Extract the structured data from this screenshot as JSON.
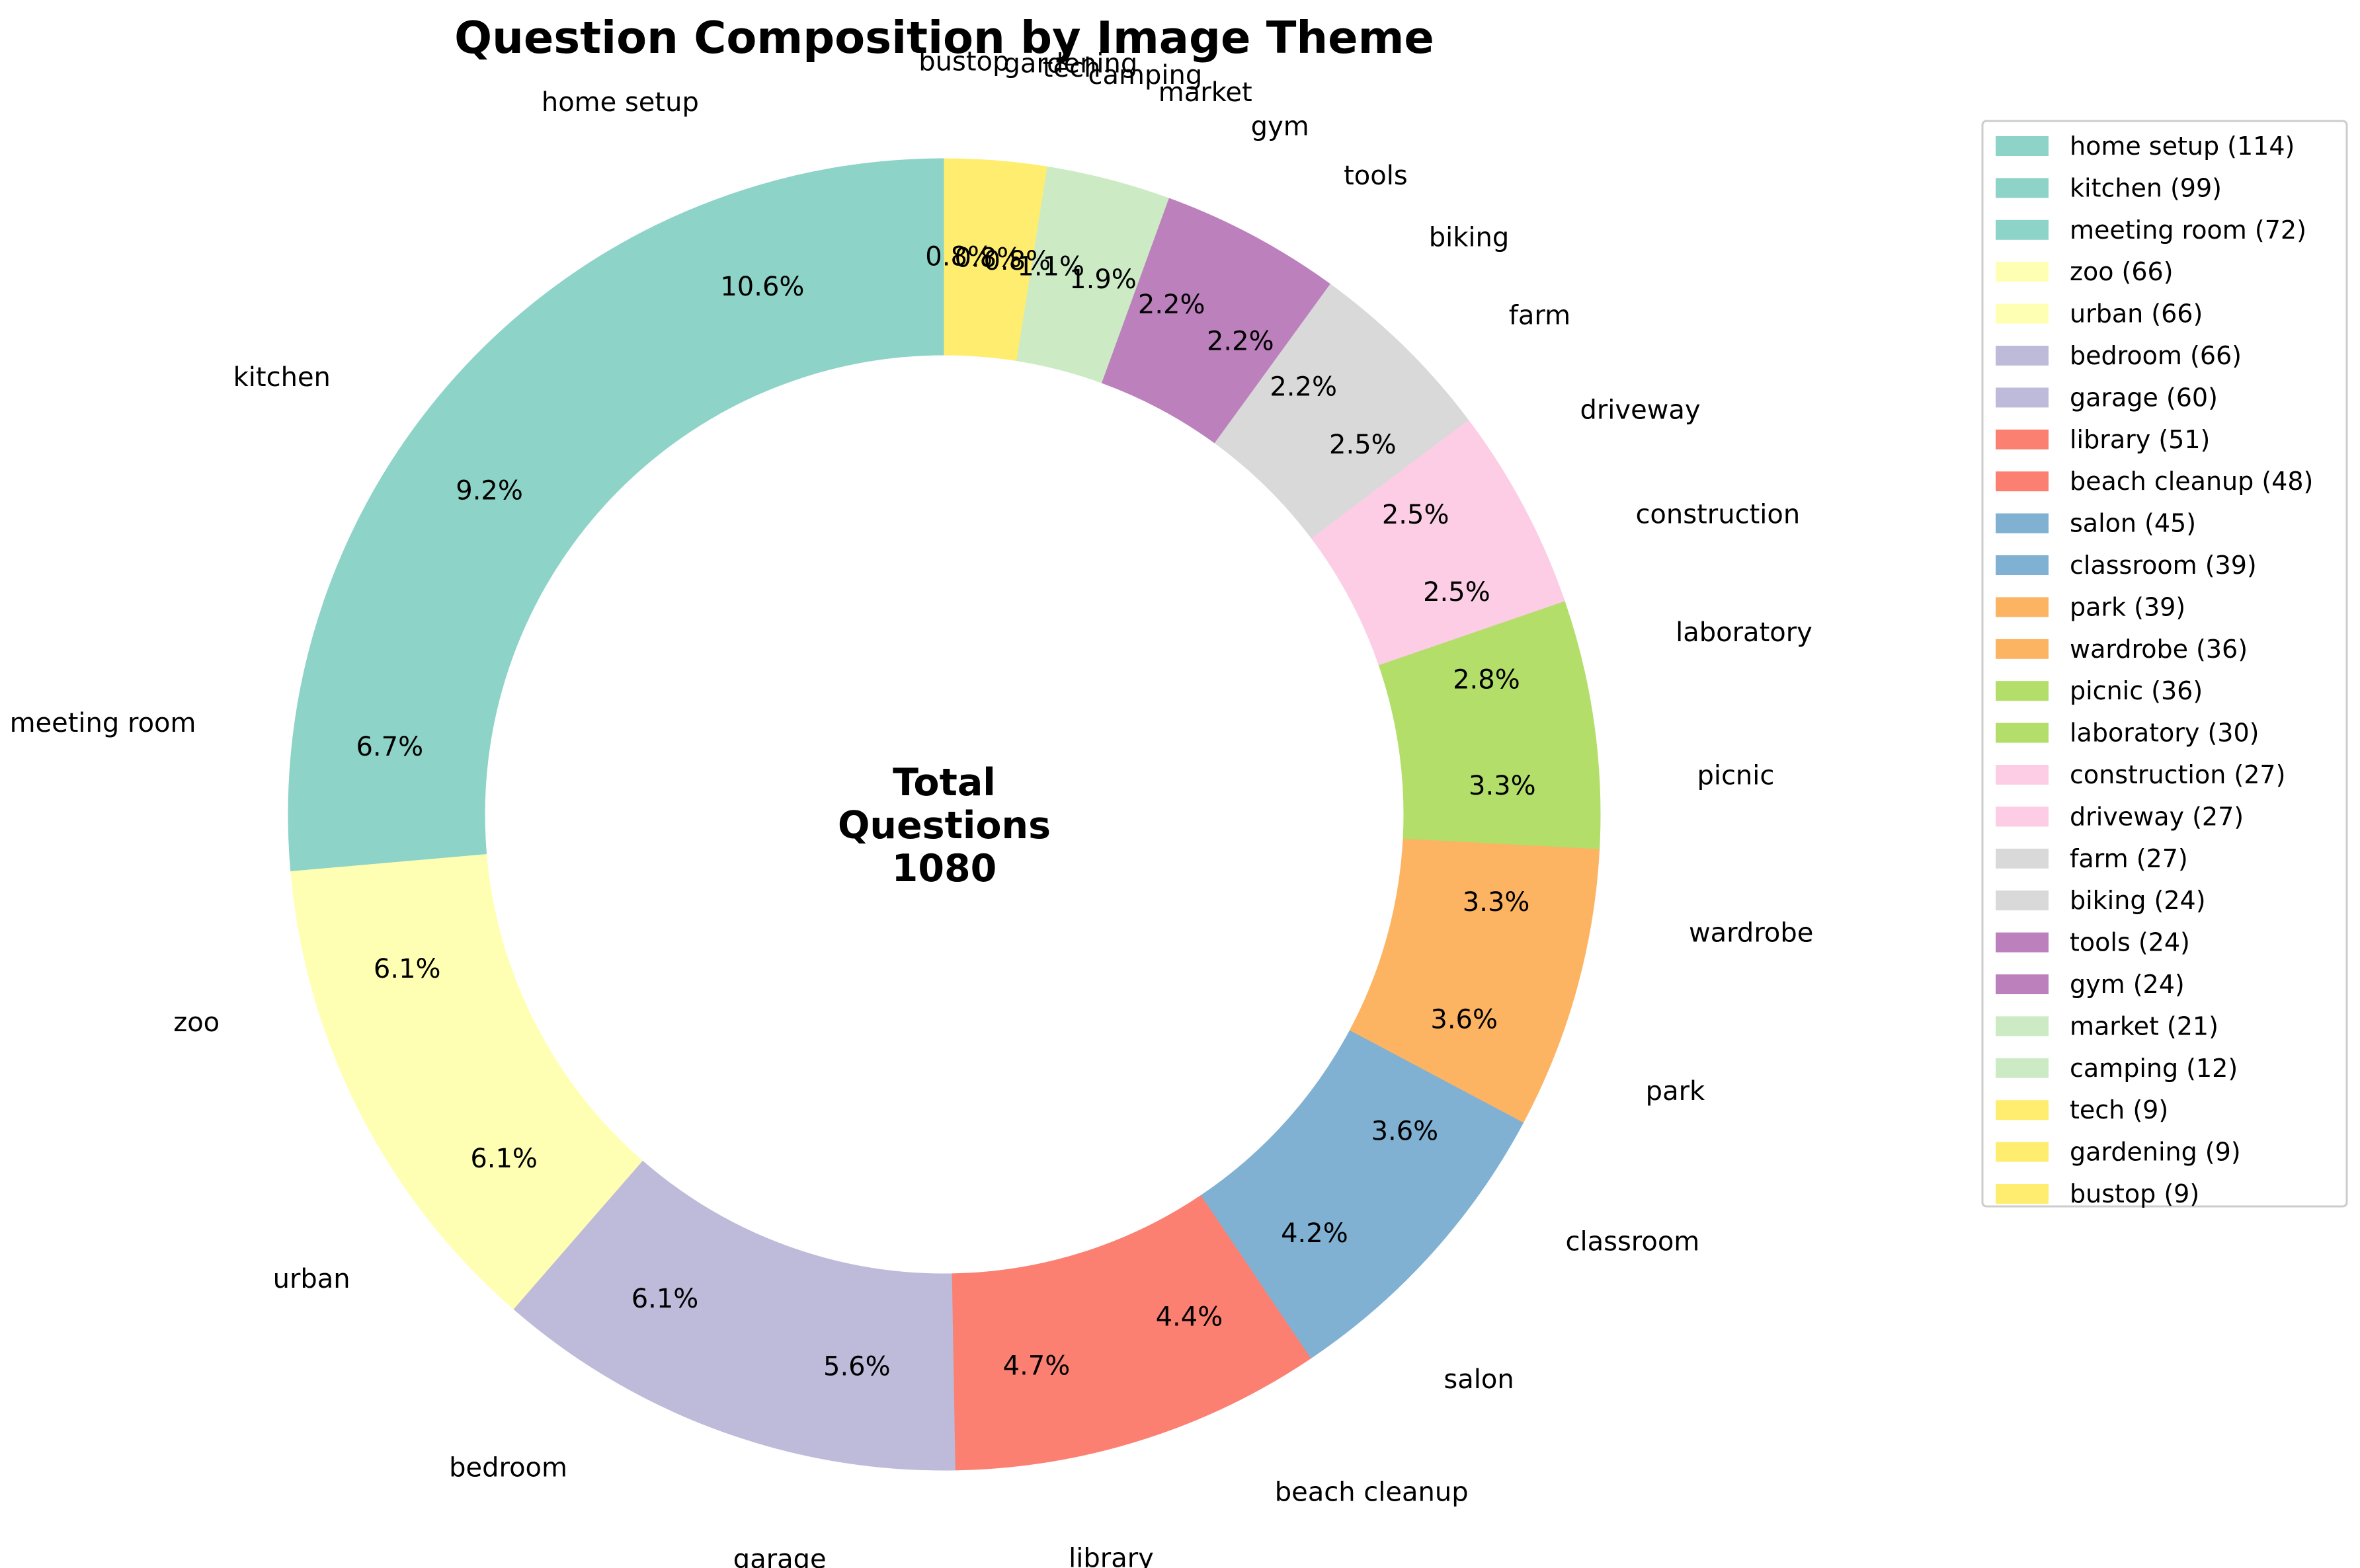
{
  "chart_data": {
    "type": "pie",
    "donut": true,
    "title": "Question Composition by Image Theme",
    "center_text": [
      "Total",
      "Questions",
      "1080"
    ],
    "total": 1080,
    "legend_position": "right",
    "start_angle_deg": 90,
    "direction": "counterclockwise",
    "categories": [
      "home setup",
      "kitchen",
      "meeting room",
      "zoo",
      "urban",
      "bedroom",
      "garage",
      "library",
      "beach cleanup",
      "salon",
      "classroom",
      "park",
      "wardrobe",
      "picnic",
      "laboratory",
      "construction",
      "driveway",
      "farm",
      "biking",
      "tools",
      "gym",
      "market",
      "camping",
      "tech",
      "gardening",
      "bustop"
    ],
    "values": [
      114,
      99,
      72,
      66,
      66,
      66,
      60,
      51,
      48,
      45,
      39,
      39,
      36,
      36,
      30,
      27,
      27,
      27,
      24,
      24,
      24,
      21,
      12,
      9,
      9,
      9
    ],
    "percent_labels": [
      "10.6%",
      "9.2%",
      "6.7%",
      "6.1%",
      "6.1%",
      "6.1%",
      "5.6%",
      "4.7%",
      "4.4%",
      "4.2%",
      "3.6%",
      "3.6%",
      "3.3%",
      "3.3%",
      "2.8%",
      "2.5%",
      "2.5%",
      "2.5%",
      "2.2%",
      "2.2%",
      "2.2%",
      "1.9%",
      "1.1%",
      "0.8%",
      "0.8%",
      "0.8%"
    ],
    "legend_entries": [
      "home setup (114)",
      "kitchen (99)",
      "meeting room (72)",
      "zoo (66)",
      "urban (66)",
      "bedroom (66)",
      "garage (60)",
      "library (51)",
      "beach cleanup (48)",
      "salon (45)",
      "classroom (39)",
      "park (39)",
      "wardrobe (36)",
      "picnic (36)",
      "laboratory (30)",
      "construction (27)",
      "driveway (27)",
      "farm (27)",
      "biking (24)",
      "tools (24)",
      "gym (24)",
      "market (21)",
      "camping (12)",
      "tech (9)",
      "gardening (9)",
      "bustop (9)"
    ],
    "colors": [
      "#8dd3c7",
      "#8dd3c7",
      "#8dd3c7",
      "#ffffb3",
      "#ffffb3",
      "#bebada",
      "#bebada",
      "#fb8072",
      "#fb8072",
      "#80b1d3",
      "#80b1d3",
      "#fdb462",
      "#fdb462",
      "#b3de69",
      "#b3de69",
      "#fccde5",
      "#fccde5",
      "#d9d9d9",
      "#d9d9d9",
      "#bc80bd",
      "#bc80bd",
      "#ccebc5",
      "#ccebc5",
      "#ffed6f",
      "#ffed6f",
      "#ffed6f"
    ]
  }
}
